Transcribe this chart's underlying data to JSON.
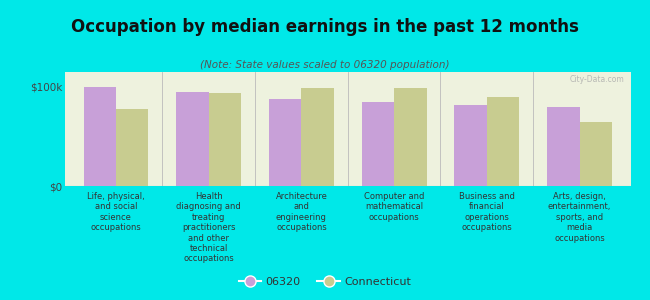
{
  "title": "Occupation by median earnings in the past 12 months",
  "subtitle": "(Note: State values scaled to 06320 population)",
  "categories": [
    "Life, physical,\nand social\nscience\noccupations",
    "Health\ndiagnosing and\ntreating\npractitioners\nand other\ntechnical\noccupations",
    "Architecture\nand\nengineering\noccupations",
    "Computer and\nmathematical\noccupations",
    "Business and\nfinancial\noperations\noccupations",
    "Arts, design,\nentertainment,\nsports, and\nmedia\noccupations"
  ],
  "values_06320": [
    100,
    95,
    88,
    85,
    82,
    80
  ],
  "values_connecticut": [
    78,
    94,
    99,
    99,
    90,
    65
  ],
  "color_06320": "#c8a0d8",
  "color_connecticut": "#c8cc90",
  "background_plot": "#eef2de",
  "background_fig": "#00e8e8",
  "ylabel_ticks": [
    "$0",
    "$100k"
  ],
  "ytick_vals": [
    0,
    100
  ],
  "ylim": [
    0,
    115
  ],
  "legend_06320": "06320",
  "legend_connecticut": "Connecticut",
  "watermark": "City-Data.com"
}
